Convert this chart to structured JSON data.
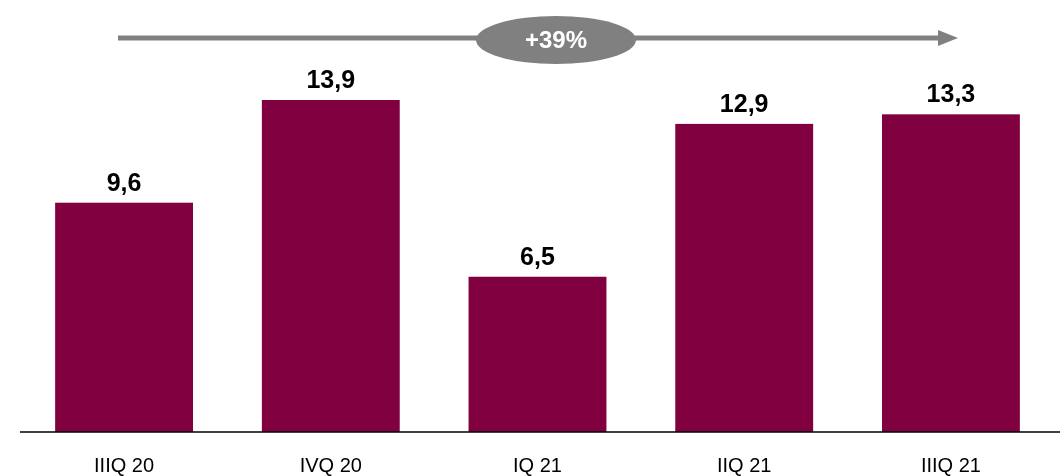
{
  "chart_data": {
    "type": "bar",
    "categories": [
      "IIIQ 20",
      "IVQ 20",
      "IQ 21",
      "IIQ 21",
      "IIIQ 21"
    ],
    "values": [
      9.6,
      13.9,
      6.5,
      12.9,
      13.3
    ],
    "value_labels": [
      "9,6",
      "13,9",
      "6,5",
      "12,9",
      "13,3"
    ],
    "color": "#800040",
    "annotations": [
      "+39%"
    ]
  }
}
